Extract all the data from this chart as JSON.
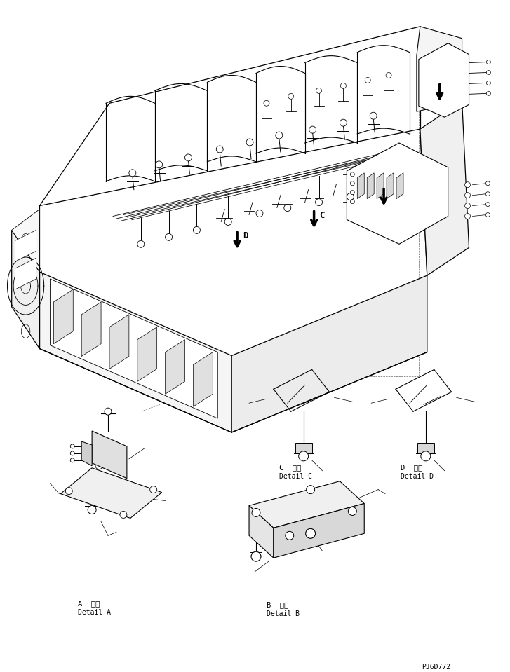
{
  "background_color": "#ffffff",
  "line_color": "#000000",
  "label_A_jp": "A  詳細",
  "label_A_en": "Detail A",
  "label_B_jp": "B  詳細",
  "label_B_en": "Detail B",
  "label_C_jp": "C  詳細",
  "label_C_en": "Detail C",
  "label_D_jp": "D  詳細",
  "label_D_en": "Detail D",
  "part_code": "PJ6D772"
}
